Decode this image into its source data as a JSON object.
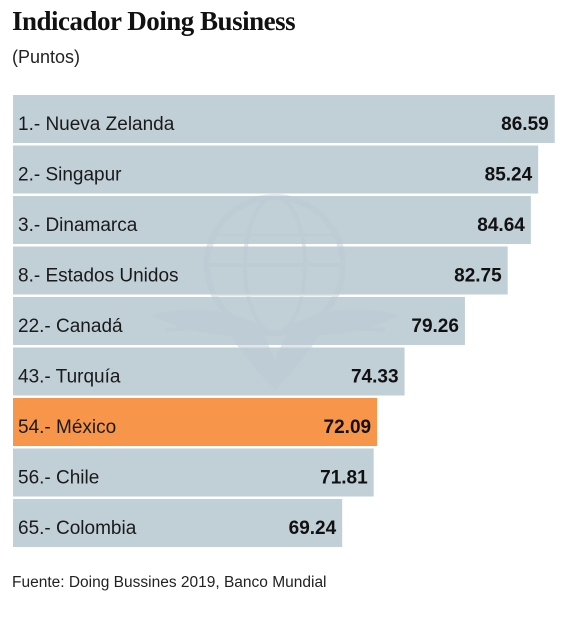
{
  "chart_data": {
    "type": "bar",
    "orientation": "horizontal",
    "title": "Indicador Doing Business",
    "subtitle": "(Puntos)",
    "source": "Fuente: Doing Bussines 2019, Banco Mundial",
    "categories": [
      "1.- Nueva Zelanda",
      "2.- Singapur",
      "3.- Dinamarca",
      "8.- Estados Unidos",
      "22.- Canadá",
      "43.- Turquía",
      "54.- México",
      "56.- Chile",
      "65.- Colombia"
    ],
    "values": [
      86.59,
      85.24,
      84.64,
      82.75,
      79.26,
      74.33,
      72.09,
      71.81,
      69.24
    ],
    "value_labels": [
      "86.59",
      "85.24",
      "84.64",
      "82.75",
      "79.26",
      "74.33",
      "72.09",
      "71.81",
      "69.24"
    ],
    "highlight_index": 6,
    "colors": {
      "bar": "#b8c8d2",
      "highlight": "#f7964a",
      "watermark": "#9fb0b9"
    },
    "grid": false,
    "legend": "none"
  }
}
